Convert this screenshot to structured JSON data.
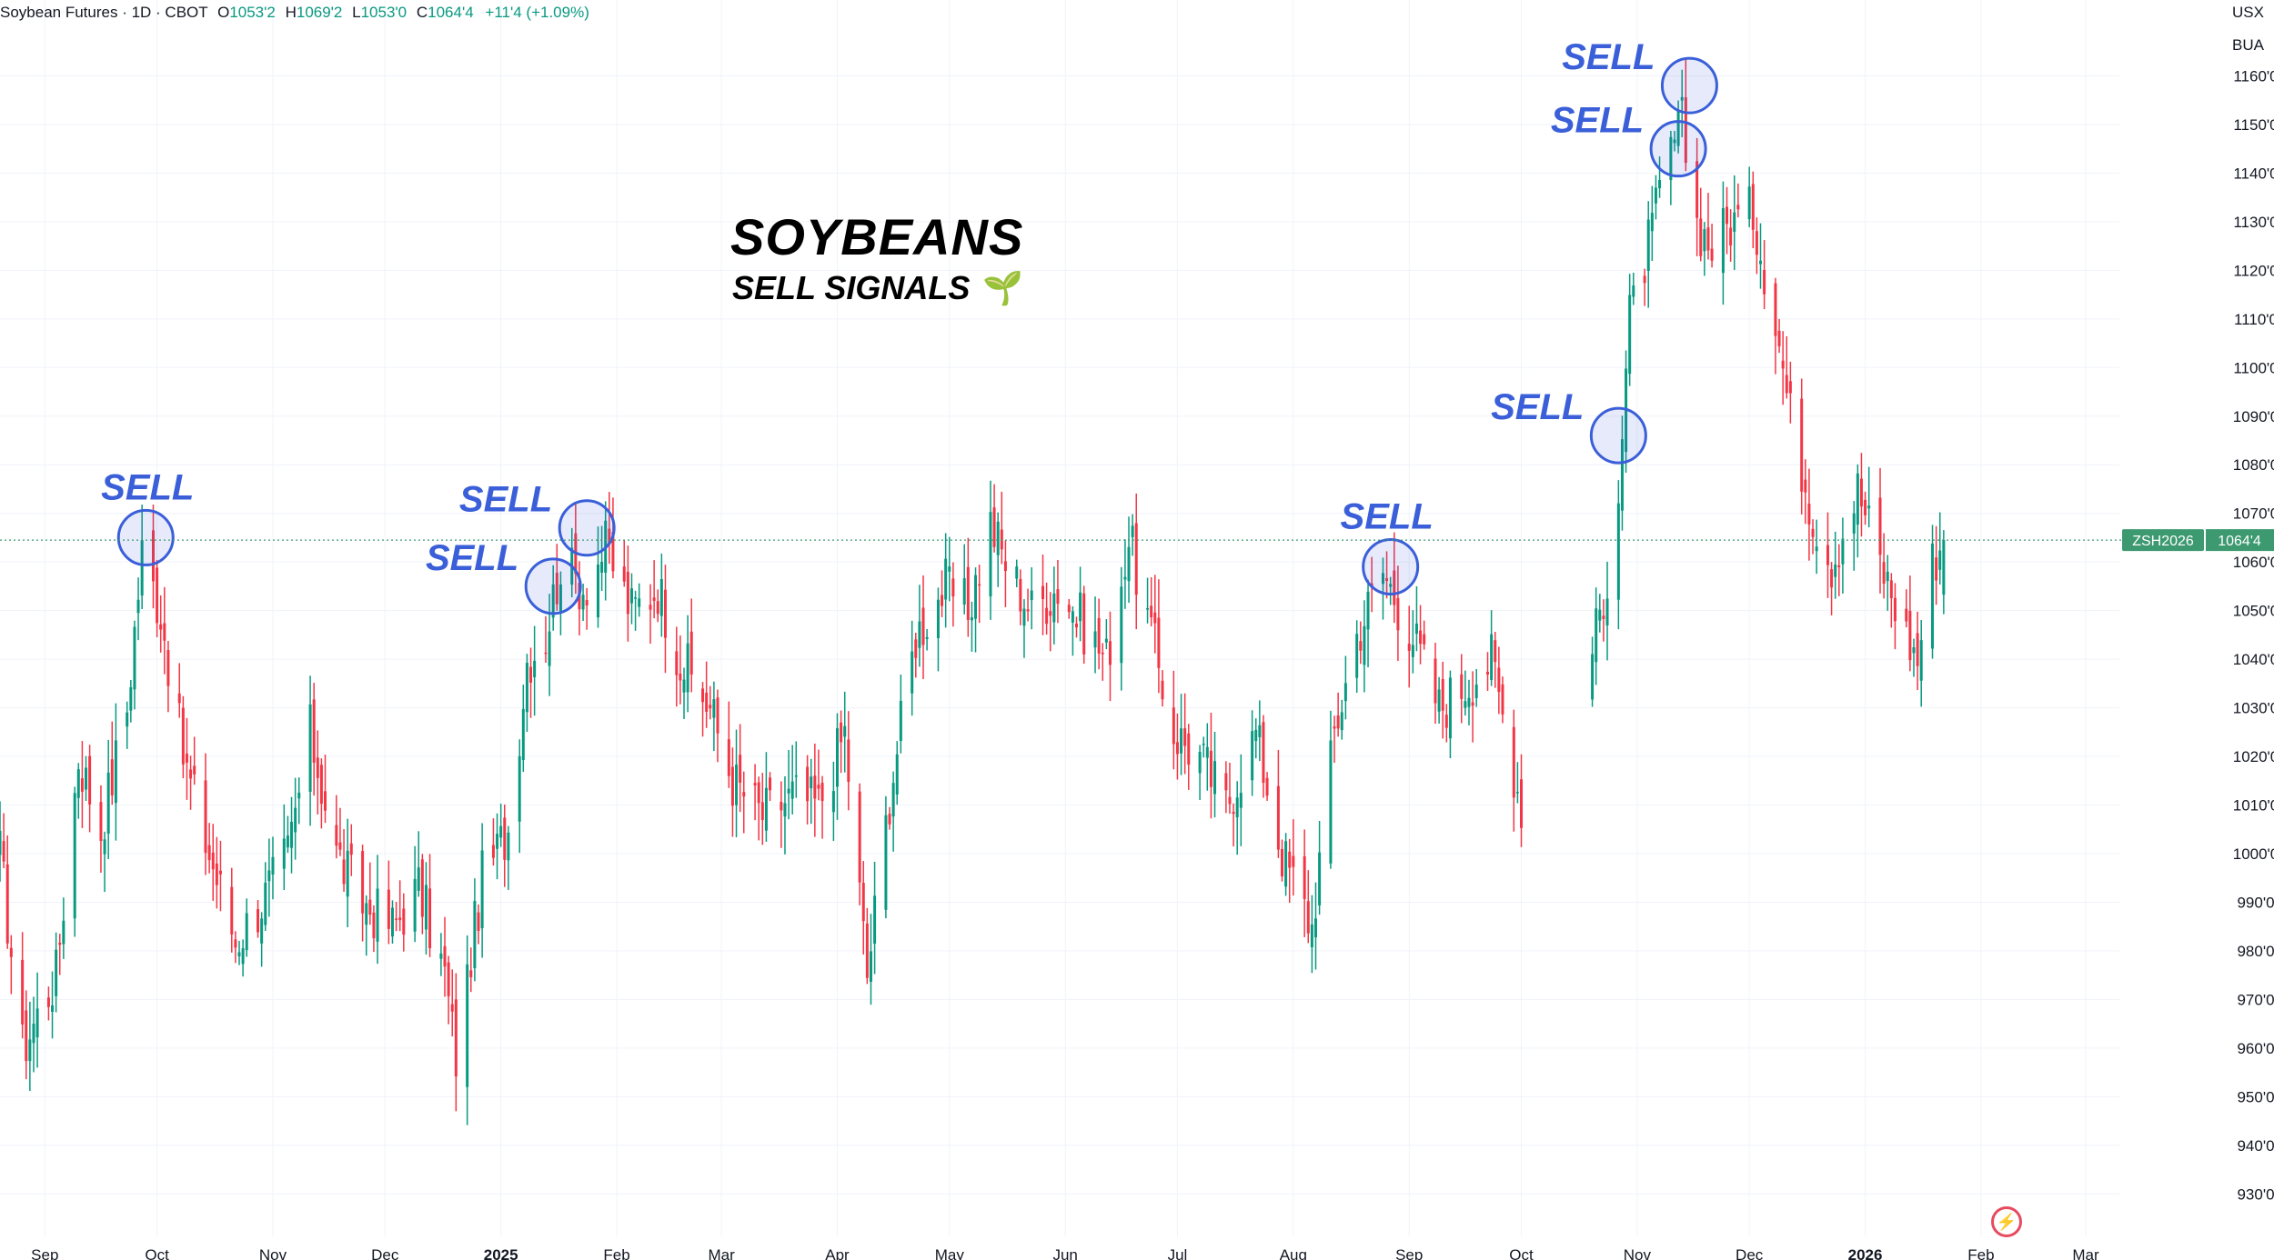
{
  "header": {
    "symbol": "Soybean Futures · 1D · CBOT",
    "o_label": "O",
    "o_value": "1053'2",
    "h_label": "H",
    "h_value": "1069'2",
    "l_label": "L",
    "l_value": "1053'0",
    "c_label": "C",
    "c_value": "1064'4",
    "change": "+11'4 (+1.09%)"
  },
  "units": {
    "currency": "USX",
    "quantity": "BUA"
  },
  "overlay": {
    "title": "SOYBEANS",
    "subtitle": "SELL SIGNALS",
    "subtitle_icon": "🌱"
  },
  "colors": {
    "up": "#089981",
    "down": "#f23645",
    "signal": "#3a5fd9",
    "price_tag": "#3d9970"
  },
  "icons": {
    "bottom_right": "lightning-bolt-icon"
  },
  "chart_data": {
    "type": "candlestick",
    "title": "SOYBEANS",
    "subtitle": "SELL SIGNALS",
    "x_range": [
      "2024-08-20",
      "2026-03-10"
    ],
    "ylim": [
      925,
      1170
    ],
    "yticks": [
      930,
      940,
      950,
      960,
      970,
      980,
      990,
      1000,
      1010,
      1020,
      1030,
      1040,
      1050,
      1060,
      1070,
      1080,
      1090,
      1100,
      1110,
      1120,
      1130,
      1140,
      1150,
      1160
    ],
    "ytick_labels": [
      "930'0",
      "940'0",
      "950'0",
      "960'0",
      "970'0",
      "980'0",
      "990'0",
      "1000'0",
      "1010'0",
      "1020'0",
      "1030'0",
      "1040'0",
      "1050'0",
      "1060'0",
      "1070'0",
      "1080'0",
      "1090'0",
      "1100'0",
      "1110'0",
      "1120'0",
      "1130'0",
      "1140'0",
      "1150'0",
      "1160'0"
    ],
    "xticks": [
      {
        "date": "2024-09-01",
        "label": "Sep",
        "bold": false
      },
      {
        "date": "2024-10-01",
        "label": "Oct",
        "bold": false
      },
      {
        "date": "2024-11-01",
        "label": "Nov",
        "bold": false
      },
      {
        "date": "2024-12-01",
        "label": "Dec",
        "bold": false
      },
      {
        "date": "2025-01-01",
        "label": "2025",
        "bold": true
      },
      {
        "date": "2025-02-01",
        "label": "Feb",
        "bold": false
      },
      {
        "date": "2025-03-01",
        "label": "Mar",
        "bold": false
      },
      {
        "date": "2025-04-01",
        "label": "Apr",
        "bold": false
      },
      {
        "date": "2025-05-01",
        "label": "May",
        "bold": false
      },
      {
        "date": "2025-06-01",
        "label": "Jun",
        "bold": false
      },
      {
        "date": "2025-07-01",
        "label": "Jul",
        "bold": false
      },
      {
        "date": "2025-08-01",
        "label": "Aug",
        "bold": false
      },
      {
        "date": "2025-09-01",
        "label": "Sep",
        "bold": false
      },
      {
        "date": "2025-10-01",
        "label": "Oct",
        "bold": false
      },
      {
        "date": "2025-11-01",
        "label": "Nov",
        "bold": false
      },
      {
        "date": "2025-12-01",
        "label": "Dec",
        "bold": false
      },
      {
        "date": "2026-01-01",
        "label": "2026",
        "bold": true
      },
      {
        "date": "2026-02-01",
        "label": "Feb",
        "bold": false
      },
      {
        "date": "2026-03-01",
        "label": "Mar",
        "bold": false
      }
    ],
    "last_price": 1064.5,
    "last_price_label": "1064'4",
    "contract": "ZSH2026",
    "anchors": [
      [
        "2024-08-20",
        1000
      ],
      [
        "2024-08-26",
        960
      ],
      [
        "2024-09-04",
        975
      ],
      [
        "2024-09-10",
        1020
      ],
      [
        "2024-09-16",
        1005
      ],
      [
        "2024-09-23",
        1030
      ],
      [
        "2024-09-27",
        1062
      ],
      [
        "2024-10-02",
        1050
      ],
      [
        "2024-10-08",
        1020
      ],
      [
        "2024-10-15",
        1000
      ],
      [
        "2024-10-22",
        982
      ],
      [
        "2024-10-29",
        990
      ],
      [
        "2024-11-05",
        1000
      ],
      [
        "2024-11-11",
        1025
      ],
      [
        "2024-11-18",
        1000
      ],
      [
        "2024-11-25",
        990
      ],
      [
        "2024-12-03",
        985
      ],
      [
        "2024-12-10",
        993
      ],
      [
        "2024-12-17",
        975
      ],
      [
        "2024-12-20",
        958
      ],
      [
        "2024-12-27",
        995
      ],
      [
        "2025-01-03",
        1005
      ],
      [
        "2025-01-08",
        1040
      ],
      [
        "2025-01-13",
        1045
      ],
      [
        "2025-01-17",
        1060
      ],
      [
        "2025-01-23",
        1055
      ],
      [
        "2025-01-29",
        1063
      ],
      [
        "2025-02-05",
        1050
      ],
      [
        "2025-02-12",
        1055
      ],
      [
        "2025-02-18",
        1040
      ],
      [
        "2025-02-26",
        1030
      ],
      [
        "2025-03-04",
        1015
      ],
      [
        "2025-03-12",
        1008
      ],
      [
        "2025-03-20",
        1012
      ],
      [
        "2025-03-27",
        1010
      ],
      [
        "2025-04-03",
        1025
      ],
      [
        "2025-04-09",
        975
      ],
      [
        "2025-04-15",
        1012
      ],
      [
        "2025-04-22",
        1045
      ],
      [
        "2025-04-30",
        1055
      ],
      [
        "2025-05-06",
        1050
      ],
      [
        "2025-05-12",
        1068
      ],
      [
        "2025-05-16",
        1060
      ],
      [
        "2025-05-23",
        1050
      ],
      [
        "2025-05-30",
        1055
      ],
      [
        "2025-06-05",
        1048
      ],
      [
        "2025-06-12",
        1040
      ],
      [
        "2025-06-18",
        1065
      ],
      [
        "2025-06-24",
        1045
      ],
      [
        "2025-06-30",
        1025
      ],
      [
        "2025-07-07",
        1020
      ],
      [
        "2025-07-14",
        1010
      ],
      [
        "2025-07-22",
        1025
      ],
      [
        "2025-07-29",
        1000
      ],
      [
        "2025-08-06",
        985
      ],
      [
        "2025-08-12",
        1025
      ],
      [
        "2025-08-18",
        1045
      ],
      [
        "2025-08-25",
        1058
      ],
      [
        "2025-09-02",
        1045
      ],
      [
        "2025-09-09",
        1030
      ],
      [
        "2025-09-16",
        1035
      ],
      [
        "2025-09-23",
        1040
      ],
      [
        "2025-10-01",
        1010
      ],
      [
        "2025-10-06",
        1015
      ],
      [
        "2025-10-14",
        1025
      ],
      [
        "2025-10-21",
        1045
      ],
      [
        "2025-10-24",
        1058
      ],
      [
        "2025-10-27",
        1075
      ],
      [
        "2025-10-30",
        1110
      ],
      [
        "2025-11-04",
        1125
      ],
      [
        "2025-11-10",
        1145
      ],
      [
        "2025-11-13",
        1150
      ],
      [
        "2025-11-17",
        1130
      ],
      [
        "2025-11-21",
        1125
      ],
      [
        "2025-11-26",
        1130
      ],
      [
        "2025-12-02",
        1132
      ],
      [
        "2025-12-08",
        1110
      ],
      [
        "2025-12-12",
        1090
      ],
      [
        "2025-12-18",
        1070
      ],
      [
        "2025-12-23",
        1060
      ],
      [
        "2025-12-30",
        1075
      ],
      [
        "2026-01-05",
        1060
      ],
      [
        "2026-01-12",
        1045
      ],
      [
        "2026-01-15",
        1040
      ],
      [
        "2026-01-19",
        1060
      ],
      [
        "2026-01-22",
        1064.5
      ]
    ],
    "gaps": [
      [
        "2025-10-01",
        "2025-10-20"
      ]
    ],
    "annotations": [
      {
        "label": "SELL",
        "date": "2024-09-28",
        "price": 1065
      },
      {
        "label": "SELL",
        "date": "2025-01-15",
        "price": 1055
      },
      {
        "label": "SELL",
        "date": "2025-01-24",
        "price": 1067
      },
      {
        "label": "SELL",
        "date": "2025-08-27",
        "price": 1059
      },
      {
        "label": "SELL",
        "date": "2025-10-27",
        "price": 1086
      },
      {
        "label": "SELL",
        "date": "2025-11-12",
        "price": 1145
      },
      {
        "label": "SELL",
        "date": "2025-11-15",
        "price": 1158
      }
    ]
  }
}
